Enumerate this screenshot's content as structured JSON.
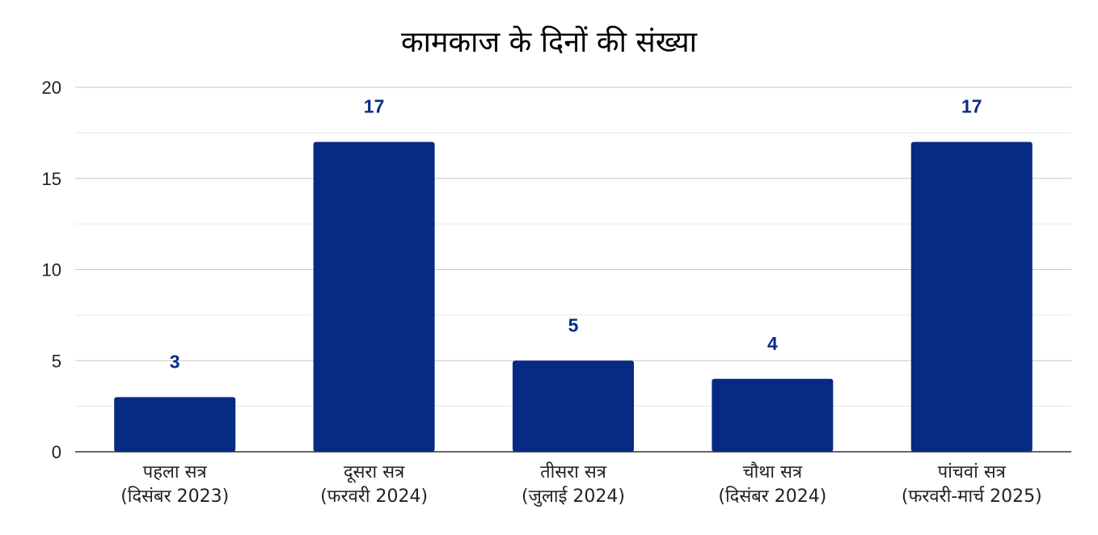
{
  "chart_data": {
    "type": "bar",
    "title": "कामकाज के दिनों की संख्या",
    "categories": [
      [
        "पहला सत्र",
        "(दिसंबर 2023)"
      ],
      [
        "दूसरा सत्र",
        "(फरवरी 2024)"
      ],
      [
        "तीसरा सत्र",
        "(जुलाई 2024)"
      ],
      [
        "चौथा सत्र",
        "(दिसंबर 2024)"
      ],
      [
        "पांचवां सत्र",
        "(फरवरी-मार्च 2025)"
      ]
    ],
    "values": [
      3,
      17,
      5,
      4,
      17
    ],
    "ylim": [
      0,
      20
    ],
    "yticks": [
      "0",
      "5",
      "10",
      "15",
      "20"
    ],
    "grid": true,
    "bar_color": "#072a84",
    "label_color": "#0a2a84"
  }
}
